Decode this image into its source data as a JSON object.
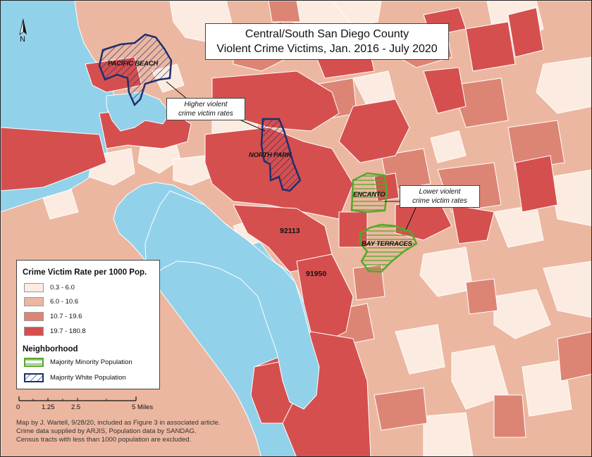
{
  "title": {
    "line1": "Central/South San Diego County",
    "line2": "Violent Crime Victims, Jan. 2016 - July 2020"
  },
  "north_arrow": {
    "label": "N"
  },
  "colors": {
    "ocean": "#92d1ea",
    "class1": "#fcebe0",
    "class2": "#ecb7a1",
    "class3": "#dd8575",
    "class4": "#d64f4f",
    "minority_outline": "#56a82a",
    "white_outline": "#1f2f6e"
  },
  "callouts": {
    "higher": "Higher violent crime victim rates",
    "lower": "Lower violent crime victim rates"
  },
  "neighborhoods": {
    "pacific_beach": "PACIFIC BEACH",
    "north_park": "NORTH PARK",
    "encanto": "ENCANTO",
    "bay_terraces": "BAY TERRACES"
  },
  "zip_labels": {
    "z92113": "92113",
    "z91950": "91950"
  },
  "legend": {
    "title": "Crime Victim Rate per 1000 Pop.",
    "classes": [
      {
        "label": "0.3 - 6.0",
        "color": "#fcebe0"
      },
      {
        "label": "6.0 - 10.6",
        "color": "#ecb7a1"
      },
      {
        "label": "10.7 - 19.6",
        "color": "#dd8575"
      },
      {
        "label": "19.7 - 180.8",
        "color": "#d64f4f"
      }
    ],
    "neighborhood_title": "Neighborhood",
    "neighborhood_items": [
      {
        "label": "Majority Minority Population",
        "icon": "green-hatched-swatch"
      },
      {
        "label": "Majority White Population",
        "icon": "blue-hatched-swatch"
      }
    ]
  },
  "scale_bar": {
    "ticks": [
      "0",
      "1.25",
      "2.5",
      "5 Miles"
    ]
  },
  "credits": {
    "line1": "Map by J. Wartell, 9/28/20, included as Figure 3 in associated article.",
    "line2": "Crime data supplied by ARJIS, Population data by SANDAG.",
    "line3": "Census tracts with less than 1000 population are excluded."
  }
}
